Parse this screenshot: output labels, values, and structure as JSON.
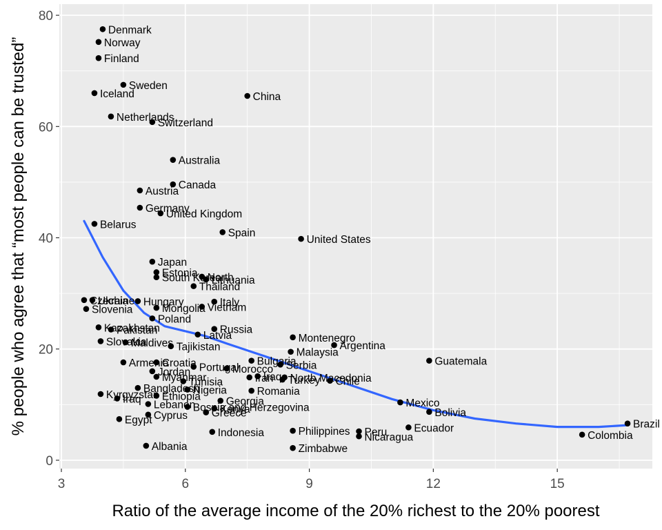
{
  "chart_data": {
    "type": "scatter",
    "xlabel": "Ratio of the average income of the 20% richest to the 20% poorest",
    "ylabel": "% people who agree that “most people can be trusted”",
    "xlim": [
      2.95,
      17.3
    ],
    "ylim": [
      -1.5,
      82
    ],
    "xticks": [
      3,
      6,
      9,
      12,
      15
    ],
    "yticks": [
      0,
      20,
      40,
      60,
      80
    ],
    "grid": true,
    "panel_background": "#ebebeb",
    "grid_color": "#ffffff",
    "point_color": "#000000",
    "smooth_color": "#3366ff",
    "points": [
      {
        "label": "Denmark",
        "x": 4.0,
        "y": 77.5
      },
      {
        "label": "Norway",
        "x": 3.9,
        "y": 75.2
      },
      {
        "label": "Finland",
        "x": 3.9,
        "y": 72.3
      },
      {
        "label": "Sweden",
        "x": 4.5,
        "y": 67.5
      },
      {
        "label": "Iceland",
        "x": 3.8,
        "y": 66.0
      },
      {
        "label": "China",
        "x": 7.5,
        "y": 65.5
      },
      {
        "label": "Netherlands",
        "x": 4.2,
        "y": 61.8
      },
      {
        "label": "Switzerland",
        "x": 5.2,
        "y": 60.8
      },
      {
        "label": "Australia",
        "x": 5.7,
        "y": 54.0
      },
      {
        "label": "Canada",
        "x": 5.7,
        "y": 49.6
      },
      {
        "label": "Austria",
        "x": 4.9,
        "y": 48.5
      },
      {
        "label": "Germany",
        "x": 4.9,
        "y": 45.4
      },
      {
        "label": "United Kingdom",
        "x": 5.4,
        "y": 44.4
      },
      {
        "label": "Belarus",
        "x": 3.8,
        "y": 42.5
      },
      {
        "label": "Spain",
        "x": 6.9,
        "y": 41.0
      },
      {
        "label": "United States",
        "x": 8.8,
        "y": 39.8
      },
      {
        "label": "Japan",
        "x": 5.2,
        "y": 35.7
      },
      {
        "label": "Estonia",
        "x": 5.3,
        "y": 33.8
      },
      {
        "label": "South Korea",
        "x": 5.3,
        "y": 32.9
      },
      {
        "label": "North",
        "x": 6.4,
        "y": 33.0
      },
      {
        "label": "Lithuania",
        "x": 6.5,
        "y": 32.5
      },
      {
        "label": "Thailand",
        "x": 6.2,
        "y": 31.3
      },
      {
        "label": "Czechia",
        "x": 3.55,
        "y": 28.8
      },
      {
        "label": "Ukraine",
        "x": 3.75,
        "y": 28.8
      },
      {
        "label": "Slovenia",
        "x": 3.6,
        "y": 27.2
      },
      {
        "label": "Hungary",
        "x": 4.85,
        "y": 28.6
      },
      {
        "label": "Mongolia",
        "x": 5.3,
        "y": 27.4
      },
      {
        "label": "Vietnam",
        "x": 6.4,
        "y": 27.6
      },
      {
        "label": "Italy",
        "x": 6.7,
        "y": 28.5
      },
      {
        "label": "Poland",
        "x": 5.2,
        "y": 25.5
      },
      {
        "label": "Kazakhstan",
        "x": 3.9,
        "y": 23.9
      },
      {
        "label": "Pakistan",
        "x": 4.2,
        "y": 23.5
      },
      {
        "label": "Russia",
        "x": 6.7,
        "y": 23.6
      },
      {
        "label": "Latvia",
        "x": 6.3,
        "y": 22.6
      },
      {
        "label": "Slovakia",
        "x": 3.95,
        "y": 21.4
      },
      {
        "label": "Maldives",
        "x": 4.55,
        "y": 21.2
      },
      {
        "label": "Tajikistan",
        "x": 5.65,
        "y": 20.5
      },
      {
        "label": "Montenegro",
        "x": 8.6,
        "y": 22.1
      },
      {
        "label": "Argentina",
        "x": 9.6,
        "y": 20.7
      },
      {
        "label": "Malaysia",
        "x": 8.55,
        "y": 19.5
      },
      {
        "label": "Bulgaria",
        "x": 7.6,
        "y": 17.9
      },
      {
        "label": "Serbia",
        "x": 8.3,
        "y": 17.2
      },
      {
        "label": "Guatemala",
        "x": 11.9,
        "y": 17.9
      },
      {
        "label": "Armenia",
        "x": 4.5,
        "y": 17.6
      },
      {
        "label": "Croatia",
        "x": 5.3,
        "y": 17.6
      },
      {
        "label": "Portugal",
        "x": 6.2,
        "y": 16.8
      },
      {
        "label": "Morocco",
        "x": 7.0,
        "y": 16.5
      },
      {
        "label": "Jordan",
        "x": 5.2,
        "y": 16.0
      },
      {
        "label": "Myanmar",
        "x": 5.3,
        "y": 15.0
      },
      {
        "label": "Iran",
        "x": 7.55,
        "y": 14.9
      },
      {
        "label": "Iraq",
        "x": 7.75,
        "y": 15.1
      },
      {
        "label": "North Macedonia",
        "x": 8.4,
        "y": 14.9
      },
      {
        "label": "Turkey",
        "x": 8.35,
        "y": 14.5
      },
      {
        "label": "Chile",
        "x": 9.5,
        "y": 14.3
      },
      {
        "label": "Tunisia",
        "x": 5.95,
        "y": 14.2
      },
      {
        "label": "Bangladesh",
        "x": 4.85,
        "y": 13.0
      },
      {
        "label": "Nigeria",
        "x": 6.05,
        "y": 12.7
      },
      {
        "label": "Romania",
        "x": 7.6,
        "y": 12.5
      },
      {
        "label": "Kyrgyzstan",
        "x": 3.95,
        "y": 11.9
      },
      {
        "label": "Ethiopia",
        "x": 5.3,
        "y": 11.6
      },
      {
        "label": "Iraq",
        "x": 4.35,
        "y": 11.1
      },
      {
        "label": "Georgia",
        "x": 6.85,
        "y": 10.7
      },
      {
        "label": "Lebanon",
        "x": 5.1,
        "y": 10.1
      },
      {
        "label": "Bosnia and Herzegovina",
        "x": 6.05,
        "y": 9.6
      },
      {
        "label": "Kenya",
        "x": 6.7,
        "y": 9.3
      },
      {
        "label": "Greece",
        "x": 6.5,
        "y": 8.6
      },
      {
        "label": "Cyprus",
        "x": 5.1,
        "y": 8.2
      },
      {
        "label": "Egypt",
        "x": 4.4,
        "y": 7.4
      },
      {
        "label": "Mexico",
        "x": 11.2,
        "y": 10.4
      },
      {
        "label": "Bolivia",
        "x": 11.9,
        "y": 8.7
      },
      {
        "label": "Brazil",
        "x": 16.7,
        "y": 6.6
      },
      {
        "label": "Colombia",
        "x": 15.6,
        "y": 4.6
      },
      {
        "label": "Ecuador",
        "x": 11.4,
        "y": 5.9
      },
      {
        "label": "Indonesia",
        "x": 6.65,
        "y": 5.1
      },
      {
        "label": "Philippines",
        "x": 8.6,
        "y": 5.3
      },
      {
        "label": "Peru",
        "x": 10.2,
        "y": 5.2
      },
      {
        "label": "Nicaragua",
        "x": 10.2,
        "y": 4.3
      },
      {
        "label": "Albania",
        "x": 5.05,
        "y": 2.6
      },
      {
        "label": "Zimbabwe",
        "x": 8.6,
        "y": 2.2
      }
    ],
    "smooth": {
      "x": [
        3.55,
        4.0,
        4.5,
        5.0,
        5.5,
        6.0,
        6.5,
        7.0,
        8.0,
        9.0,
        10.0,
        11.0,
        12.0,
        13.0,
        14.0,
        15.0,
        16.0,
        16.7
      ],
      "y": [
        43.0,
        36.5,
        30.5,
        26.5,
        24.1,
        23.2,
        22.3,
        21.0,
        18.5,
        16.0,
        13.5,
        11.0,
        9.0,
        7.5,
        6.6,
        6.0,
        6.0,
        6.3
      ]
    }
  }
}
